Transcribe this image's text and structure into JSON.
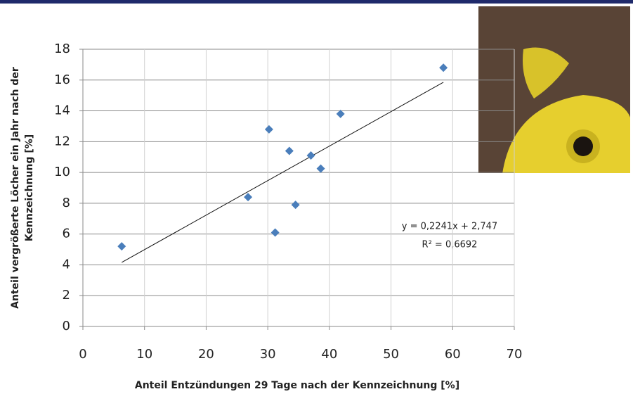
{
  "chart_data": {
    "type": "scatter",
    "xlabel": "Anteil Entzündungen 29 Tage nach der Kennzeichnung [%]",
    "ylabel": [
      "Anteil vergrößerte Löcher ein Jahr nach der",
      "Kennzeichnung [%]"
    ],
    "x": [
      6.3,
      26.8,
      30.2,
      31.2,
      33.5,
      34.5,
      37.0,
      38.6,
      41.8,
      58.5
    ],
    "values": [
      5.2,
      8.4,
      12.8,
      6.1,
      11.4,
      7.9,
      11.1,
      10.25,
      13.8,
      16.8
    ],
    "color": "#4a7ebb",
    "xlim": [
      0,
      70
    ],
    "xticks": [
      0,
      10,
      20,
      30,
      40,
      50,
      60,
      70
    ],
    "ylim": [
      0,
      18
    ],
    "yticks": [
      0,
      2,
      4,
      6,
      8,
      10,
      12,
      14,
      16,
      18
    ],
    "grid": true,
    "trendline": {
      "slope": 0.2241,
      "intercept": 2.747,
      "label": "y = 0,2241x + 2,747",
      "r2_label": "R² = 0,6692"
    }
  }
}
